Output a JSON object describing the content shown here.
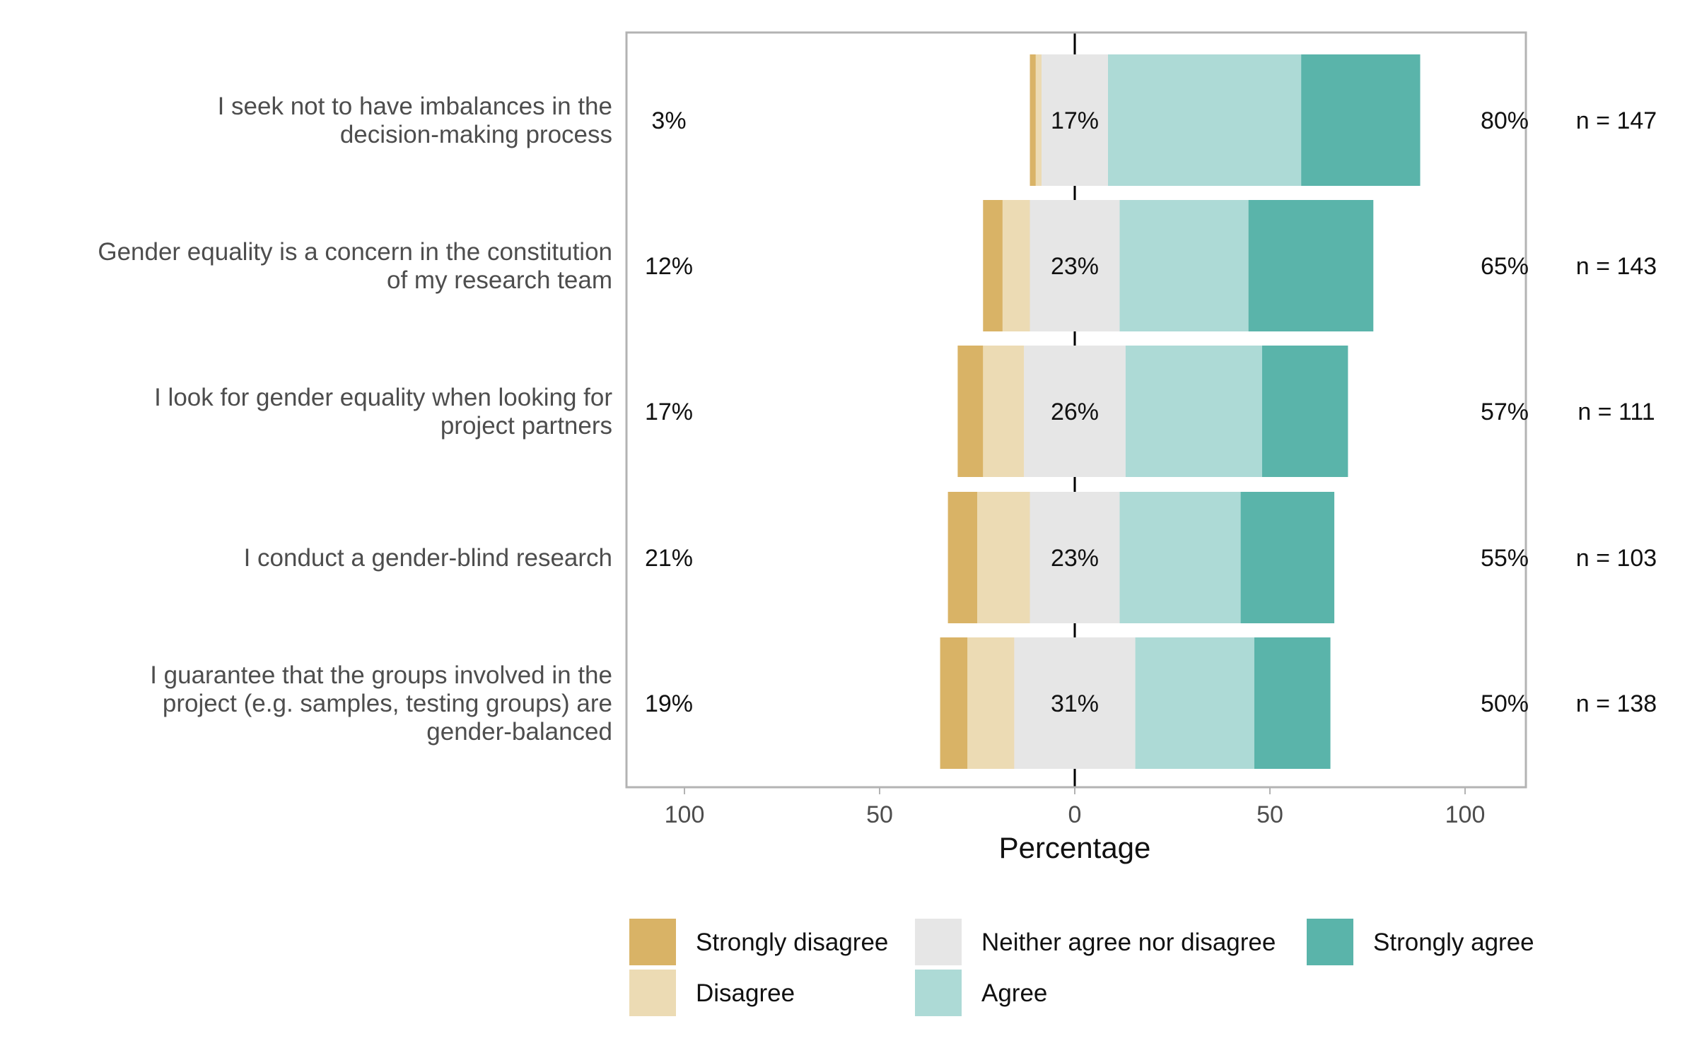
{
  "chart_data": {
    "type": "bar",
    "subtype": "diverging-stacked-likert",
    "orientation": "horizontal",
    "xlabel": "Percentage",
    "xlim": [
      -100,
      100
    ],
    "x_ticks": [
      {
        "value": -100,
        "label": "100"
      },
      {
        "value": -50,
        "label": "50"
      },
      {
        "value": 0,
        "label": "0"
      },
      {
        "value": 50,
        "label": "50"
      },
      {
        "value": 100,
        "label": "100"
      }
    ],
    "grid": true,
    "legend_position": "bottom",
    "levels": [
      {
        "name": "Strongly disagree",
        "color": "#D9B366"
      },
      {
        "name": "Disagree",
        "color": "#ECDBB4"
      },
      {
        "name": "Neither agree nor disagree",
        "color": "#E6E6E6"
      },
      {
        "name": "Agree",
        "color": "#ADDAD6"
      },
      {
        "name": "Strongly agree",
        "color": "#5AB4AA"
      }
    ],
    "categories": [
      {
        "lines": [
          "I seek not to have imbalances in the",
          "decision-making process"
        ],
        "values": [
          1.5,
          1.5,
          17,
          49.5,
          30.5
        ],
        "left_pct": "3%",
        "neutral_pct": "17%",
        "right_pct": "80%",
        "n": "n = 147"
      },
      {
        "lines": [
          "Gender equality is a concern in the constitution",
          "of my research team"
        ],
        "values": [
          5,
          7,
          23,
          33,
          32
        ],
        "left_pct": "12%",
        "neutral_pct": "23%",
        "right_pct": "65%",
        "n": "n = 143"
      },
      {
        "lines": [
          "I look for gender equality when looking for",
          "project partners"
        ],
        "values": [
          6.5,
          10.5,
          26,
          35,
          22
        ],
        "left_pct": "17%",
        "neutral_pct": "26%",
        "right_pct": "57%",
        "n": "n = 111"
      },
      {
        "lines": [
          "I conduct a gender-blind research"
        ],
        "values": [
          7.5,
          13.5,
          23,
          31,
          24
        ],
        "left_pct": "21%",
        "neutral_pct": "23%",
        "right_pct": "55%",
        "n": "n = 103"
      },
      {
        "lines": [
          "I guarantee that the groups involved in the",
          "project (e.g. samples, testing groups) are",
          "gender-balanced"
        ],
        "values": [
          7,
          12,
          31,
          30.5,
          19.5
        ],
        "left_pct": "19%",
        "neutral_pct": "31%",
        "right_pct": "50%",
        "n": "n = 138"
      }
    ]
  }
}
